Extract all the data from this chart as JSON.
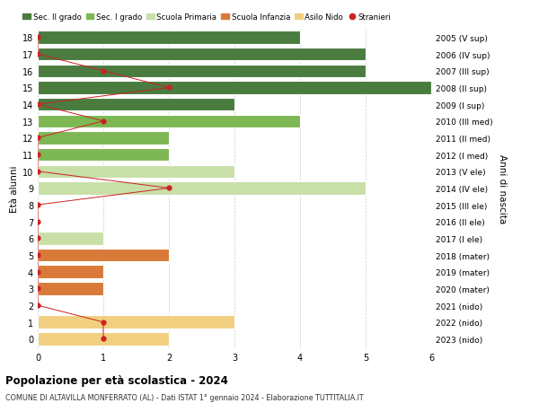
{
  "ages": [
    18,
    17,
    16,
    15,
    14,
    13,
    12,
    11,
    10,
    9,
    8,
    7,
    6,
    5,
    4,
    3,
    2,
    1,
    0
  ],
  "right_labels": [
    "2005 (V sup)",
    "2006 (IV sup)",
    "2007 (III sup)",
    "2008 (II sup)",
    "2009 (I sup)",
    "2010 (III med)",
    "2011 (II med)",
    "2012 (I med)",
    "2013 (V ele)",
    "2014 (IV ele)",
    "2015 (III ele)",
    "2016 (II ele)",
    "2017 (I ele)",
    "2018 (mater)",
    "2019 (mater)",
    "2020 (mater)",
    "2021 (nido)",
    "2022 (nido)",
    "2023 (nido)"
  ],
  "bar_values": [
    4,
    5,
    5,
    6,
    3,
    4,
    2,
    2,
    3,
    5,
    0,
    0,
    1,
    2,
    1,
    1,
    0,
    3,
    2
  ],
  "bar_colors": [
    "#4a7c40",
    "#4a7c40",
    "#4a7c40",
    "#4a7c40",
    "#4a7c40",
    "#7db854",
    "#7db854",
    "#7db854",
    "#c8e0a8",
    "#c8e0a8",
    "#c8e0a8",
    "#c8e0a8",
    "#c8e0a8",
    "#d97a3a",
    "#d97a3a",
    "#d97a3a",
    "#f0d080",
    "#f0d080",
    "#f0d080"
  ],
  "stranieri_values": [
    0,
    0,
    1,
    2,
    0,
    1,
    0,
    0,
    0,
    2,
    0,
    0,
    0,
    0,
    0,
    0,
    0,
    1,
    1
  ],
  "legend_labels": [
    "Sec. II grado",
    "Sec. I grado",
    "Scuola Primaria",
    "Scuola Infanzia",
    "Asilo Nido",
    "Stranieri"
  ],
  "legend_colors": [
    "#4a7c40",
    "#7db854",
    "#c8e0a8",
    "#d97a3a",
    "#f0d080",
    "#cc2222"
  ],
  "title": "Popolazione per età scolastica - 2024",
  "subtitle": "COMUNE DI ALTAVILLA MONFERRATO (AL) - Dati ISTAT 1° gennaio 2024 - Elaborazione TUTTITALIA.IT",
  "ylabel_left": "Età alunni",
  "ylabel_right": "Anni di nascita",
  "xlim": [
    0,
    6
  ],
  "ylim": [
    -0.55,
    18.55
  ],
  "background_color": "#ffffff",
  "bar_height": 0.78,
  "stranieri_color": "#cc2222",
  "grid_color": "#cccccc",
  "xticks": [
    0,
    1,
    2,
    3,
    4,
    5,
    6
  ]
}
